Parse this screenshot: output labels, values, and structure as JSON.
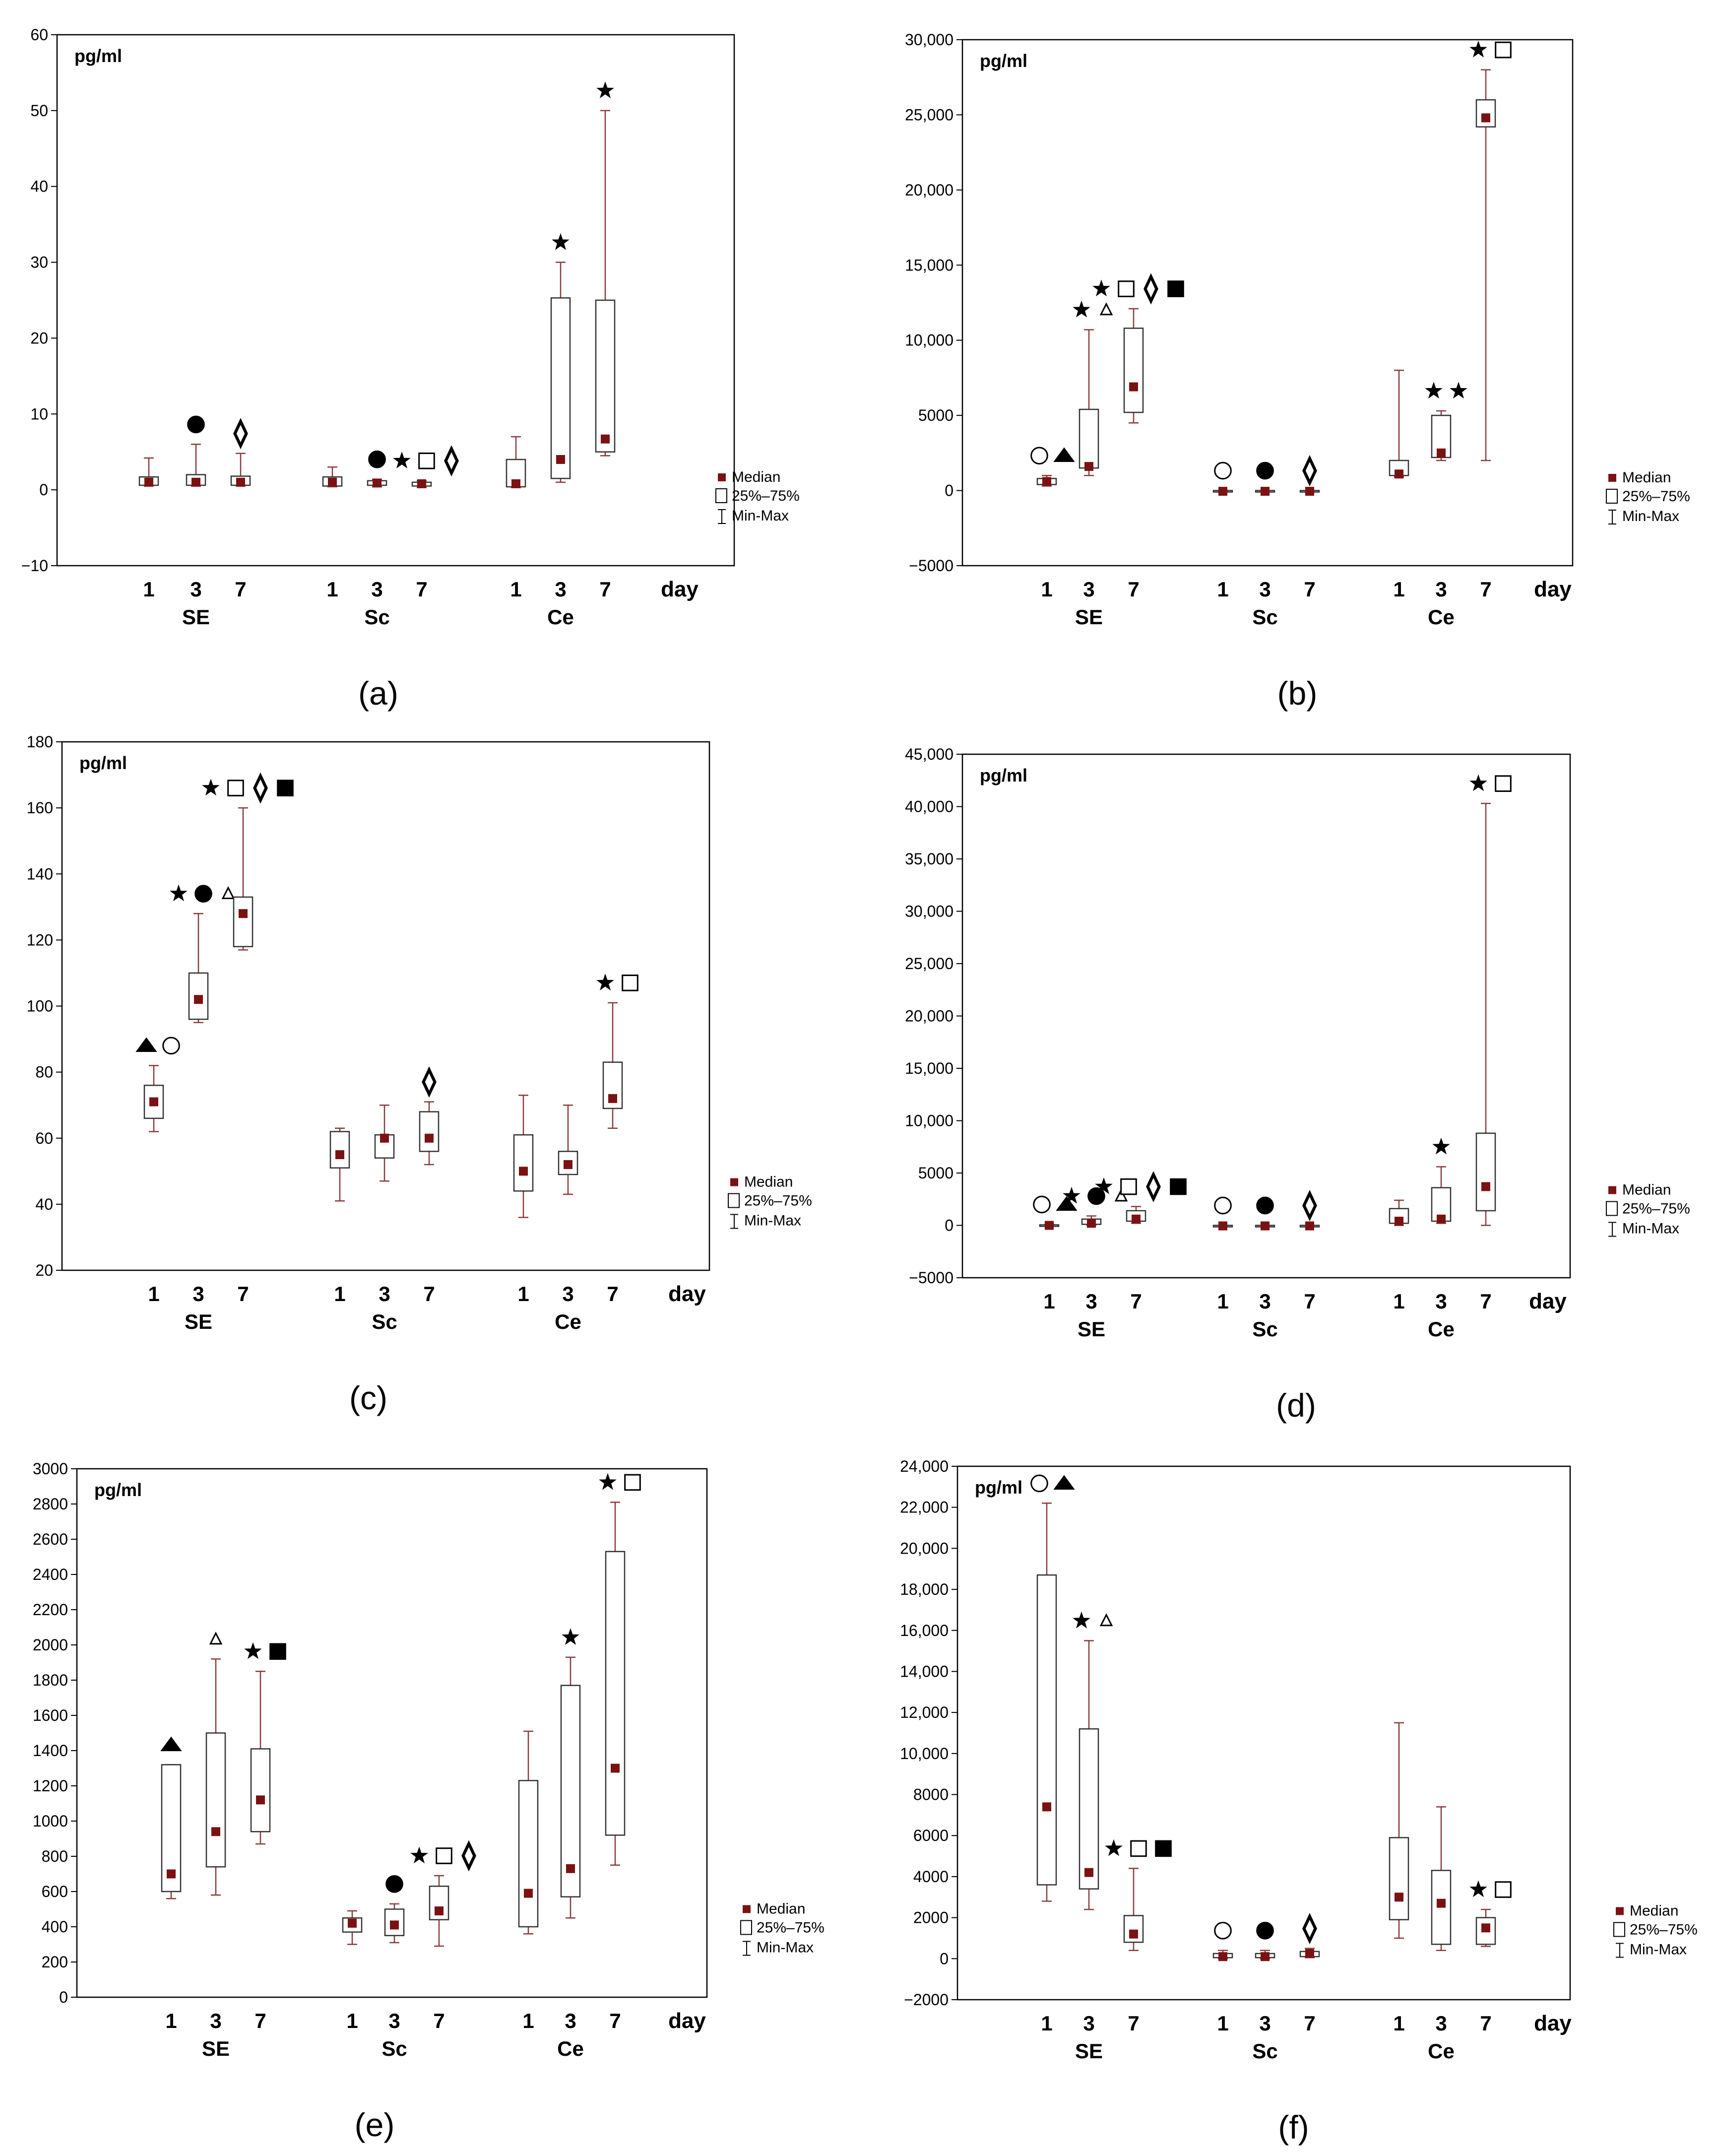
{
  "figure": {
    "legend": {
      "median": "Median",
      "iqr": "25%–75%",
      "range": "Min-Max"
    },
    "xaxis_day_label": "day",
    "colors": {
      "median": "#7b1212",
      "whisker": "#8b3a3a",
      "box": "#333333",
      "frame": "#000000",
      "grid": "#d9d9d9"
    }
  },
  "chart_data": [
    {
      "panel": "(a)",
      "type": "box",
      "ylabel": "pg/ml",
      "ylim": [
        -10,
        60
      ],
      "yticks": [
        -10,
        0,
        10,
        20,
        30,
        40,
        50,
        60
      ],
      "ytick_labels": [
        "−10",
        "0",
        "10",
        "20",
        "30",
        "40",
        "50",
        "60"
      ],
      "groups": [
        {
          "name": "SE",
          "days": [
            {
              "day": "1",
              "min": 0.5,
              "q1": 0.6,
              "median": 1,
              "q3": 1.7,
              "max": 4.2
            },
            {
              "day": "3",
              "min": 0.5,
              "q1": 0.6,
              "median": 1,
              "q3": 2.0,
              "max": 6.0,
              "marks": [
                "circle-filled"
              ]
            },
            {
              "day": "7",
              "min": 0.5,
              "q1": 0.6,
              "median": 1,
              "q3": 1.8,
              "max": 4.8,
              "marks": [
                "diamond"
              ]
            }
          ]
        },
        {
          "name": "Sc",
          "days": [
            {
              "day": "1",
              "min": 0.4,
              "q1": 0.5,
              "median": 1,
              "q3": 1.7,
              "max": 3.0
            },
            {
              "day": "3",
              "min": 0.4,
              "q1": 0.6,
              "median": 0.9,
              "q3": 1.2,
              "max": 1.4,
              "marks": [
                "circle-filled"
              ]
            },
            {
              "day": "7",
              "min": 0.3,
              "q1": 0.5,
              "median": 0.8,
              "q3": 1.0,
              "max": 1.2,
              "marks": [
                "star",
                "square",
                "diamond"
              ]
            }
          ]
        },
        {
          "name": "Ce",
          "days": [
            {
              "day": "1",
              "min": 0.3,
              "q1": 0.4,
              "median": 0.8,
              "q3": 4.0,
              "max": 7.0
            },
            {
              "day": "3",
              "min": 1.0,
              "q1": 1.5,
              "median": 4.0,
              "q3": 25.3,
              "max": 30.0,
              "marks": [
                "star"
              ]
            },
            {
              "day": "7",
              "min": 4.5,
              "q1": 5.0,
              "median": 6.7,
              "q3": 25.0,
              "max": 50.0,
              "marks": [
                "star"
              ]
            }
          ]
        }
      ]
    },
    {
      "panel": "(b)",
      "type": "box",
      "ylabel": "pg/ml",
      "ylim": [
        -5000,
        30000
      ],
      "yticks": [
        -5000,
        0,
        5000,
        10000,
        15000,
        20000,
        25000,
        30000
      ],
      "ytick_labels": [
        "−5000",
        "0",
        "5000",
        "10,000",
        "15,000",
        "20,000",
        "25,000",
        "30,000"
      ],
      "groups": [
        {
          "name": "SE",
          "days": [
            {
              "day": "1",
              "min": 300,
              "q1": 400,
              "median": 600,
              "q3": 800,
              "max": 1000,
              "marks": [
                "circle",
                "triangle-filled"
              ]
            },
            {
              "day": "3",
              "min": 1000,
              "q1": 1500,
              "median": 1600,
              "q3": 5400,
              "max": 10700,
              "marks": [
                "star",
                "triangle"
              ]
            },
            {
              "day": "7",
              "min": 4500,
              "q1": 5200,
              "median": 6900,
              "q3": 10800,
              "max": 12100,
              "marks": [
                "star",
                "square",
                "diamond",
                "square-filled"
              ]
            }
          ]
        },
        {
          "name": "Sc",
          "days": [
            {
              "day": "1",
              "min": -100,
              "q1": -50,
              "median": -50,
              "q3": 0,
              "max": 0,
              "marks": [
                "circle"
              ]
            },
            {
              "day": "3",
              "min": -100,
              "q1": -50,
              "median": -50,
              "q3": 0,
              "max": 0,
              "marks": [
                "circle-filled"
              ]
            },
            {
              "day": "7",
              "min": -100,
              "q1": -50,
              "median": -50,
              "q3": 0,
              "max": 0,
              "marks": [
                "diamond"
              ]
            }
          ]
        },
        {
          "name": "Ce",
          "days": [
            {
              "day": "1",
              "min": 900,
              "q1": 1000,
              "median": 1100,
              "q3": 2000,
              "max": 8000
            },
            {
              "day": "3",
              "min": 2000,
              "q1": 2200,
              "median": 2500,
              "q3": 5000,
              "max": 5300,
              "marks": [
                "star",
                "star"
              ]
            },
            {
              "day": "7",
              "min": 2000,
              "q1": 24200,
              "median": 24800,
              "q3": 26000,
              "max": 28000,
              "marks": [
                "star",
                "square"
              ]
            }
          ]
        }
      ]
    },
    {
      "panel": "(c)",
      "type": "box",
      "ylabel": "pg/ml",
      "ylim": [
        20,
        180
      ],
      "yticks": [
        20,
        40,
        60,
        80,
        100,
        120,
        140,
        160,
        180
      ],
      "ytick_labels": [
        "20",
        "40",
        "60",
        "80",
        "100",
        "120",
        "140",
        "160",
        "180"
      ],
      "groups": [
        {
          "name": "SE",
          "days": [
            {
              "day": "1",
              "min": 62,
              "q1": 66,
              "median": 71,
              "q3": 76,
              "max": 82,
              "marks": [
                "triangle-filled",
                "circle"
              ]
            },
            {
              "day": "3",
              "min": 95,
              "q1": 96,
              "median": 102,
              "q3": 110,
              "max": 128,
              "marks": [
                "star",
                "circle-filled",
                "triangle"
              ]
            },
            {
              "day": "7",
              "min": 117,
              "q1": 118,
              "median": 128,
              "q3": 133,
              "max": 160,
              "marks": [
                "star",
                "square",
                "diamond",
                "square-filled"
              ]
            }
          ]
        },
        {
          "name": "Sc",
          "days": [
            {
              "day": "1",
              "min": 41,
              "q1": 51,
              "median": 55,
              "q3": 62,
              "max": 63
            },
            {
              "day": "3",
              "min": 47,
              "q1": 54,
              "median": 60,
              "q3": 61,
              "max": 70
            },
            {
              "day": "7",
              "min": 52,
              "q1": 56,
              "median": 60,
              "q3": 68,
              "max": 71,
              "marks": [
                "diamond"
              ]
            }
          ]
        },
        {
          "name": "Ce",
          "days": [
            {
              "day": "1",
              "min": 36,
              "q1": 44,
              "median": 50,
              "q3": 61,
              "max": 73
            },
            {
              "day": "3",
              "min": 43,
              "q1": 49,
              "median": 52,
              "q3": 56,
              "max": 70
            },
            {
              "day": "7",
              "min": 63,
              "q1": 69,
              "median": 72,
              "q3": 83,
              "max": 101,
              "marks": [
                "star",
                "square"
              ]
            }
          ]
        }
      ]
    },
    {
      "panel": "(d)",
      "type": "box",
      "ylabel": "pg/ml",
      "ylim": [
        -5000,
        45000
      ],
      "yticks": [
        -5000,
        0,
        5000,
        10000,
        15000,
        20000,
        25000,
        30000,
        35000,
        40000,
        45000
      ],
      "ytick_labels": [
        "−5000",
        "0",
        "5000",
        "10,000",
        "15,000",
        "20,000",
        "25,000",
        "30,000",
        "35,000",
        "40,000",
        "45,000"
      ],
      "groups": [
        {
          "name": "SE",
          "days": [
            {
              "day": "1",
              "min": -100,
              "q1": -50,
              "median": 0,
              "q3": 50,
              "max": 100,
              "marks": [
                "circle",
                "triangle-filled"
              ]
            },
            {
              "day": "3",
              "min": 0,
              "q1": 100,
              "median": 200,
              "q3": 600,
              "max": 900,
              "marks": [
                "star",
                "circle-filled",
                "triangle"
              ]
            },
            {
              "day": "7",
              "min": 200,
              "q1": 400,
              "median": 600,
              "q3": 1400,
              "max": 1800,
              "marks": [
                "star",
                "square",
                "diamond",
                "square-filled"
              ]
            }
          ]
        },
        {
          "name": "Sc",
          "days": [
            {
              "day": "1",
              "min": -100,
              "q1": -50,
              "median": -50,
              "q3": 0,
              "max": 0,
              "marks": [
                "circle"
              ]
            },
            {
              "day": "3",
              "min": -100,
              "q1": -50,
              "median": -50,
              "q3": 0,
              "max": 0,
              "marks": [
                "circle-filled"
              ]
            },
            {
              "day": "7",
              "min": -100,
              "q1": -50,
              "median": -50,
              "q3": 0,
              "max": 0,
              "marks": [
                "diamond"
              ]
            }
          ]
        },
        {
          "name": "Ce",
          "days": [
            {
              "day": "1",
              "min": 0,
              "q1": 200,
              "median": 400,
              "q3": 1600,
              "max": 2400
            },
            {
              "day": "3",
              "min": 200,
              "q1": 400,
              "median": 600,
              "q3": 3600,
              "max": 5600,
              "marks": [
                "star"
              ]
            },
            {
              "day": "7",
              "min": 0,
              "q1": 1400,
              "median": 3700,
              "q3": 8800,
              "max": 40300,
              "marks": [
                "star",
                "square"
              ]
            }
          ]
        }
      ]
    },
    {
      "panel": "(e)",
      "type": "box",
      "ylabel": "pg/ml",
      "ylim": [
        0,
        3000
      ],
      "yticks": [
        0,
        200,
        400,
        600,
        800,
        1000,
        1200,
        1400,
        1600,
        1800,
        2000,
        2200,
        2400,
        2600,
        2800,
        3000
      ],
      "ytick_labels": [
        "0",
        "200",
        "400",
        "600",
        "800",
        "1000",
        "1200",
        "1400",
        "1600",
        "1800",
        "2000",
        "2200",
        "2400",
        "2600",
        "2800",
        "3000"
      ],
      "groups": [
        {
          "name": "SE",
          "days": [
            {
              "day": "1",
              "min": 560,
              "q1": 600,
              "median": 700,
              "q3": 1320,
              "max": 1320,
              "marks": [
                "triangle-filled"
              ]
            },
            {
              "day": "3",
              "min": 580,
              "q1": 740,
              "median": 940,
              "q3": 1500,
              "max": 1920,
              "marks": [
                "triangle"
              ]
            },
            {
              "day": "7",
              "min": 870,
              "q1": 940,
              "median": 1120,
              "q3": 1410,
              "max": 1850,
              "marks": [
                "star",
                "square-filled"
              ]
            }
          ]
        },
        {
          "name": "Sc",
          "days": [
            {
              "day": "1",
              "min": 300,
              "q1": 370,
              "median": 420,
              "q3": 450,
              "max": 490
            },
            {
              "day": "3",
              "min": 310,
              "q1": 350,
              "median": 410,
              "q3": 500,
              "max": 530,
              "marks": [
                "circle-filled"
              ]
            },
            {
              "day": "7",
              "min": 290,
              "q1": 440,
              "median": 490,
              "q3": 630,
              "max": 690,
              "marks": [
                "star",
                "square",
                "diamond"
              ]
            }
          ]
        },
        {
          "name": "Ce",
          "days": [
            {
              "day": "1",
              "min": 360,
              "q1": 400,
              "median": 590,
              "q3": 1230,
              "max": 1510
            },
            {
              "day": "3",
              "min": 450,
              "q1": 570,
              "median": 730,
              "q3": 1770,
              "max": 1930,
              "marks": [
                "star"
              ]
            },
            {
              "day": "7",
              "min": 750,
              "q1": 920,
              "median": 1300,
              "q3": 2530,
              "max": 2810,
              "marks": [
                "star",
                "square"
              ]
            }
          ]
        }
      ]
    },
    {
      "panel": "(f)",
      "type": "box",
      "ylabel": "pg/ml",
      "ylim": [
        -2000,
        24000
      ],
      "yticks": [
        -2000,
        0,
        2000,
        4000,
        6000,
        8000,
        10000,
        12000,
        14000,
        16000,
        18000,
        20000,
        22000,
        24000
      ],
      "ytick_labels": [
        "−2000",
        "0",
        "2000",
        "4000",
        "6000",
        "8000",
        "10,000",
        "12,000",
        "14,000",
        "16,000",
        "18,000",
        "20,000",
        "22,000",
        "24,000"
      ],
      "groups": [
        {
          "name": "SE",
          "days": [
            {
              "day": "1",
              "min": 2800,
              "q1": 3600,
              "median": 7400,
              "q3": 18700,
              "max": 22200,
              "marks": [
                "circle",
                "triangle-filled"
              ]
            },
            {
              "day": "3",
              "min": 2400,
              "q1": 3400,
              "median": 4200,
              "q3": 11200,
              "max": 15500,
              "marks": [
                "star",
                "triangle"
              ]
            },
            {
              "day": "7",
              "min": 400,
              "q1": 800,
              "median": 1200,
              "q3": 2100,
              "max": 4400,
              "marks": [
                "star",
                "square",
                "square-filled"
              ]
            }
          ]
        },
        {
          "name": "Sc",
          "days": [
            {
              "day": "1",
              "min": 0,
              "q1": 50,
              "median": 100,
              "q3": 250,
              "max": 400,
              "marks": [
                "circle"
              ]
            },
            {
              "day": "3",
              "min": 0,
              "q1": 50,
              "median": 100,
              "q3": 250,
              "max": 400,
              "marks": [
                "circle-filled"
              ]
            },
            {
              "day": "7",
              "min": 50,
              "q1": 100,
              "median": 250,
              "q3": 350,
              "max": 500,
              "marks": [
                "diamond"
              ]
            }
          ]
        },
        {
          "name": "Ce",
          "days": [
            {
              "day": "1",
              "min": 1000,
              "q1": 1900,
              "median": 3000,
              "q3": 5900,
              "max": 11500
            },
            {
              "day": "3",
              "min": 400,
              "q1": 700,
              "median": 2700,
              "q3": 4300,
              "max": 7400
            },
            {
              "day": "7",
              "min": 600,
              "q1": 700,
              "median": 1500,
              "q3": 2000,
              "max": 2400,
              "marks": [
                "star",
                "square"
              ]
            }
          ]
        }
      ]
    }
  ]
}
